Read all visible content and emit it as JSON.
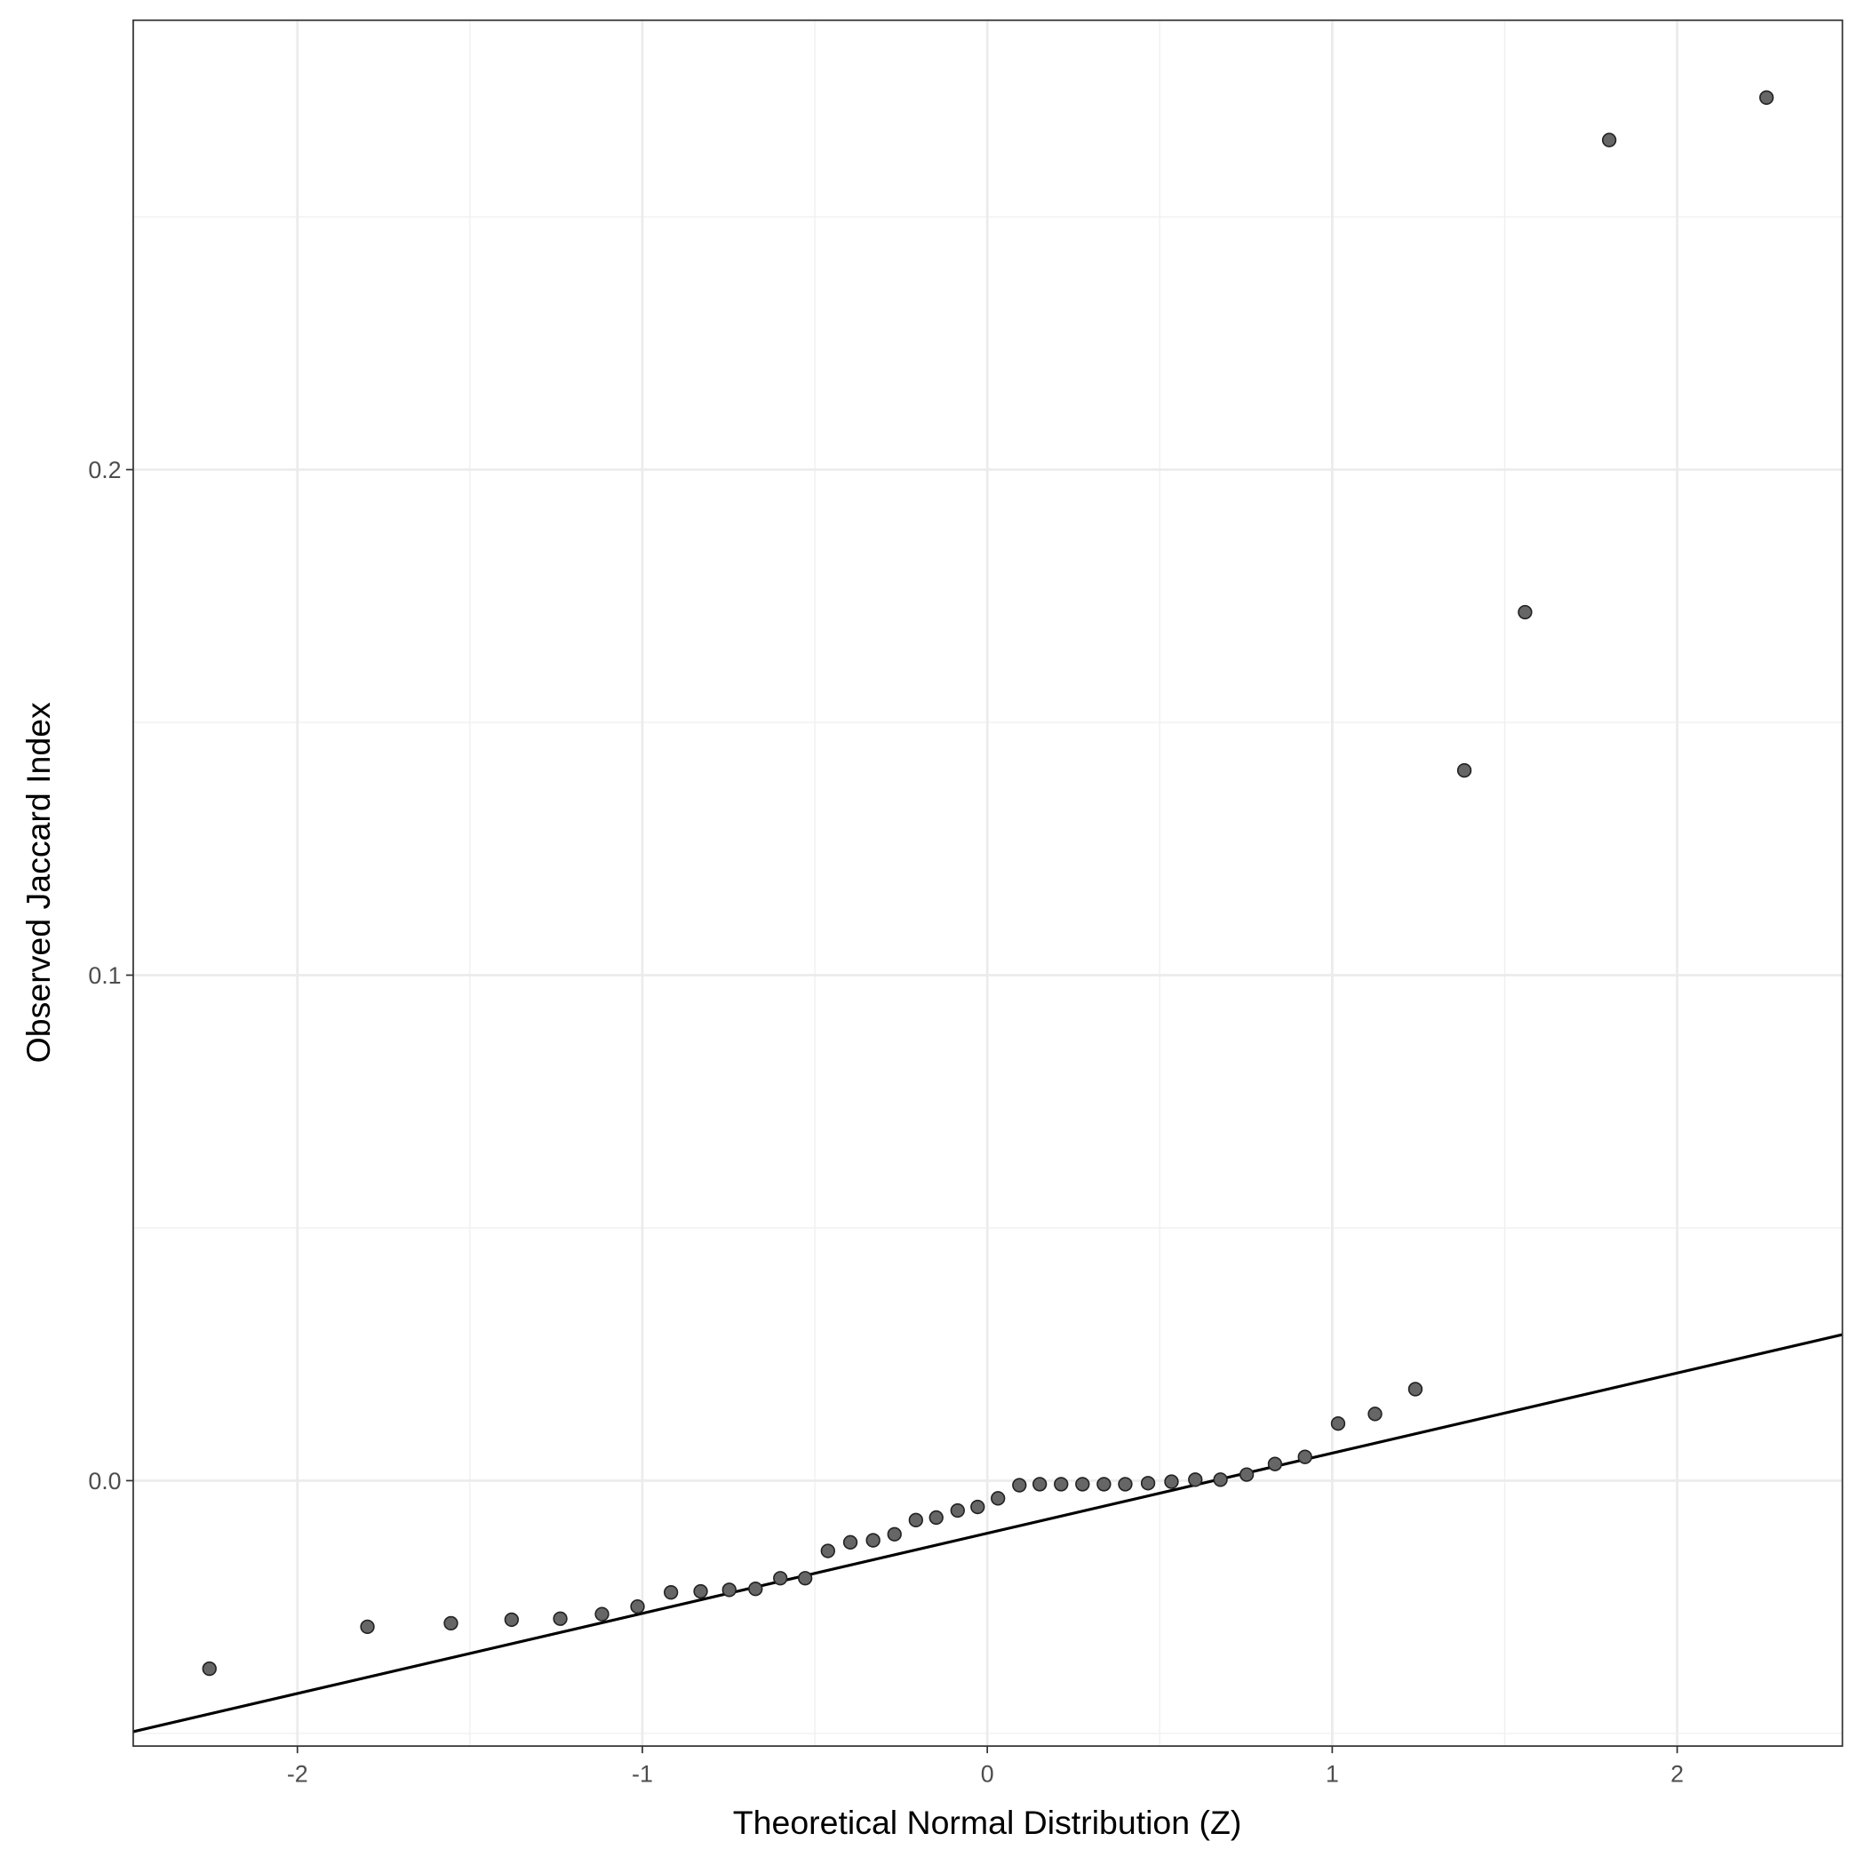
{
  "chart_data": {
    "type": "scatter",
    "title": "",
    "xlabel": "Theoretical Normal Distribution (Z)",
    "ylabel": "Observed Jaccard Index",
    "xlim": [
      -2.476,
      2.479
    ],
    "ylim": [
      -0.0525,
      0.2889
    ],
    "xticks": [
      -2,
      -1,
      0,
      1,
      2
    ],
    "xtick_labels": [
      "-2",
      "-1",
      "0",
      "1",
      "2"
    ],
    "yticks": [
      0.0,
      0.1,
      0.2
    ],
    "ytick_labels": [
      "0.0",
      "0.1",
      "0.2"
    ],
    "x_minor": [
      -1.5,
      -0.5,
      0.5,
      1.5
    ],
    "y_minor": [
      -0.05,
      0.05,
      0.15,
      0.25
    ],
    "grid": true,
    "point_color": "#666666",
    "points": [
      [
        -2.255,
        -0.0372
      ],
      [
        -1.797,
        -0.0289
      ],
      [
        -1.555,
        -0.0282
      ],
      [
        -1.379,
        -0.0275
      ],
      [
        -1.238,
        -0.0273
      ],
      [
        -1.117,
        -0.0264
      ],
      [
        -1.014,
        -0.0249
      ],
      [
        -0.917,
        -0.0221
      ],
      [
        -0.831,
        -0.0219
      ],
      [
        -0.748,
        -0.0216
      ],
      [
        -0.672,
        -0.0214
      ],
      [
        -0.6,
        -0.0193
      ],
      [
        -0.528,
        -0.0193
      ],
      [
        -0.462,
        -0.0139
      ],
      [
        -0.397,
        -0.0122
      ],
      [
        -0.331,
        -0.0118
      ],
      [
        -0.269,
        -0.0106
      ],
      [
        -0.207,
        -0.0078
      ],
      [
        -0.148,
        -0.0073
      ],
      [
        -0.086,
        -0.0059
      ],
      [
        -0.028,
        -0.0052
      ],
      [
        0.031,
        -0.0035
      ],
      [
        0.093,
        -0.0009
      ],
      [
        0.152,
        -0.0007
      ],
      [
        0.214,
        -0.0007
      ],
      [
        0.276,
        -0.0007
      ],
      [
        0.338,
        -0.0007
      ],
      [
        0.4,
        -0.0007
      ],
      [
        0.466,
        -0.0005
      ],
      [
        0.534,
        -0.0002
      ],
      [
        0.603,
        0.0002
      ],
      [
        0.676,
        0.0002
      ],
      [
        0.752,
        0.0012
      ],
      [
        0.834,
        0.0033
      ],
      [
        0.921,
        0.0047
      ],
      [
        1.017,
        0.0113
      ],
      [
        1.124,
        0.0132
      ],
      [
        1.241,
        0.0181
      ],
      [
        1.383,
        0.1405
      ],
      [
        1.559,
        0.1718
      ],
      [
        1.803,
        0.2652
      ],
      [
        2.259,
        0.2736
      ]
    ],
    "reference_line": {
      "slope": 0.01585,
      "intercept": -0.0104
    }
  }
}
